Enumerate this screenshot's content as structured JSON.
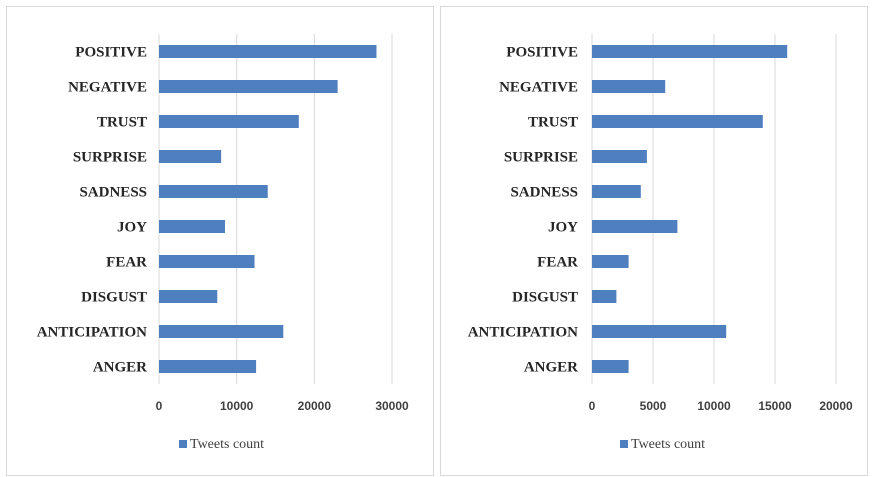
{
  "colors": {
    "bar": "#4f7fbf",
    "grid": "#d9d9d9",
    "frame": "#d9d9d9"
  },
  "chart_data": [
    {
      "type": "bar",
      "orientation": "horizontal",
      "categories": [
        "POSITIVE",
        "NEGATIVE",
        "TRUST",
        "SURPRISE",
        "SADNESS",
        "JOY",
        "FEAR",
        "DISGUST",
        "ANTICIPATION",
        "ANGER"
      ],
      "series": [
        {
          "name": "Tweets count",
          "values": [
            28000,
            23000,
            18000,
            8000,
            14000,
            8500,
            12300,
            7500,
            16000,
            12500
          ]
        }
      ],
      "xlim": [
        0,
        30000
      ],
      "xticks": [
        0,
        10000,
        20000,
        30000
      ],
      "grid": true,
      "legend": "bottom"
    },
    {
      "type": "bar",
      "orientation": "horizontal",
      "categories": [
        "POSITIVE",
        "NEGATIVE",
        "TRUST",
        "SURPRISE",
        "SADNESS",
        "JOY",
        "FEAR",
        "DISGUST",
        "ANTICIPATION",
        "ANGER"
      ],
      "series": [
        {
          "name": "Tweets count",
          "values": [
            16000,
            6000,
            14000,
            4500,
            4000,
            7000,
            3000,
            2000,
            11000,
            3000
          ]
        }
      ],
      "xlim": [
        0,
        20000
      ],
      "xticks": [
        0,
        5000,
        10000,
        15000,
        20000
      ],
      "grid": true,
      "legend": "bottom"
    }
  ]
}
